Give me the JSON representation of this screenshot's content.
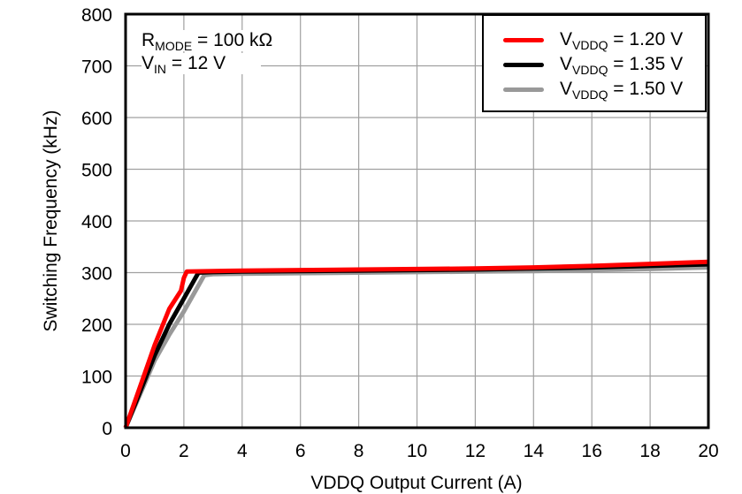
{
  "chart_data": {
    "type": "line",
    "title": "",
    "xlabel": "VDDQ Output Current (A)",
    "ylabel": "Switching Frequency (kHz)",
    "xlim": [
      0,
      20
    ],
    "ylim": [
      0,
      800
    ],
    "xticks": [
      0,
      2,
      4,
      6,
      8,
      10,
      12,
      14,
      16,
      18,
      20
    ],
    "yticks": [
      0,
      100,
      200,
      300,
      400,
      500,
      600,
      700,
      800
    ],
    "grid": true,
    "legend_position": "upper right",
    "annotations": [
      "R_MODE = 100 kΩ",
      "V_IN = 12 V"
    ],
    "series": [
      {
        "name": "VVDDQ = 1.20 V",
        "color": "#ff0000",
        "x": [
          0,
          0.5,
          1.0,
          1.5,
          1.9,
          2.0,
          2.1,
          3,
          4,
          6,
          8,
          10,
          12,
          14,
          16,
          18,
          20
        ],
        "y": [
          0,
          80,
          160,
          230,
          265,
          290,
          302,
          303,
          304,
          305,
          306,
          307,
          308,
          310,
          313,
          317,
          321
        ]
      },
      {
        "name": "VVDDQ = 1.35 V",
        "color": "#000000",
        "x": [
          0,
          0.5,
          1.0,
          1.5,
          2.0,
          2.3,
          2.5,
          3,
          4,
          6,
          8,
          10,
          12,
          14,
          16,
          18,
          20
        ],
        "y": [
          0,
          70,
          140,
          200,
          250,
          280,
          300,
          301,
          302,
          303,
          304,
          305,
          306,
          308,
          310,
          313,
          316
        ]
      },
      {
        "name": "VVDDQ = 1.50 V",
        "color": "#999999",
        "x": [
          0,
          0.5,
          1.0,
          1.5,
          2.0,
          2.4,
          2.7,
          3,
          4,
          6,
          8,
          10,
          12,
          14,
          16,
          18,
          20
        ],
        "y": [
          0,
          65,
          130,
          180,
          225,
          265,
          295,
          297,
          298,
          299,
          300,
          301,
          302,
          303,
          305,
          307,
          310
        ]
      }
    ]
  },
  "annotations": {
    "rmode_main": "R",
    "rmode_sub": "MODE",
    "rmode_value": " = 100 kΩ",
    "vin_main": "V",
    "vin_sub": "IN",
    "vin_value": " = 12 V"
  },
  "legend": [
    {
      "main": "V",
      "sub": "VDDQ",
      "value": " = 1.20 V",
      "color": "#ff0000"
    },
    {
      "main": "V",
      "sub": "VDDQ",
      "value": " = 1.35 V",
      "color": "#000000"
    },
    {
      "main": "V",
      "sub": "VDDQ",
      "value": " = 1.50 V",
      "color": "#999999"
    }
  ]
}
